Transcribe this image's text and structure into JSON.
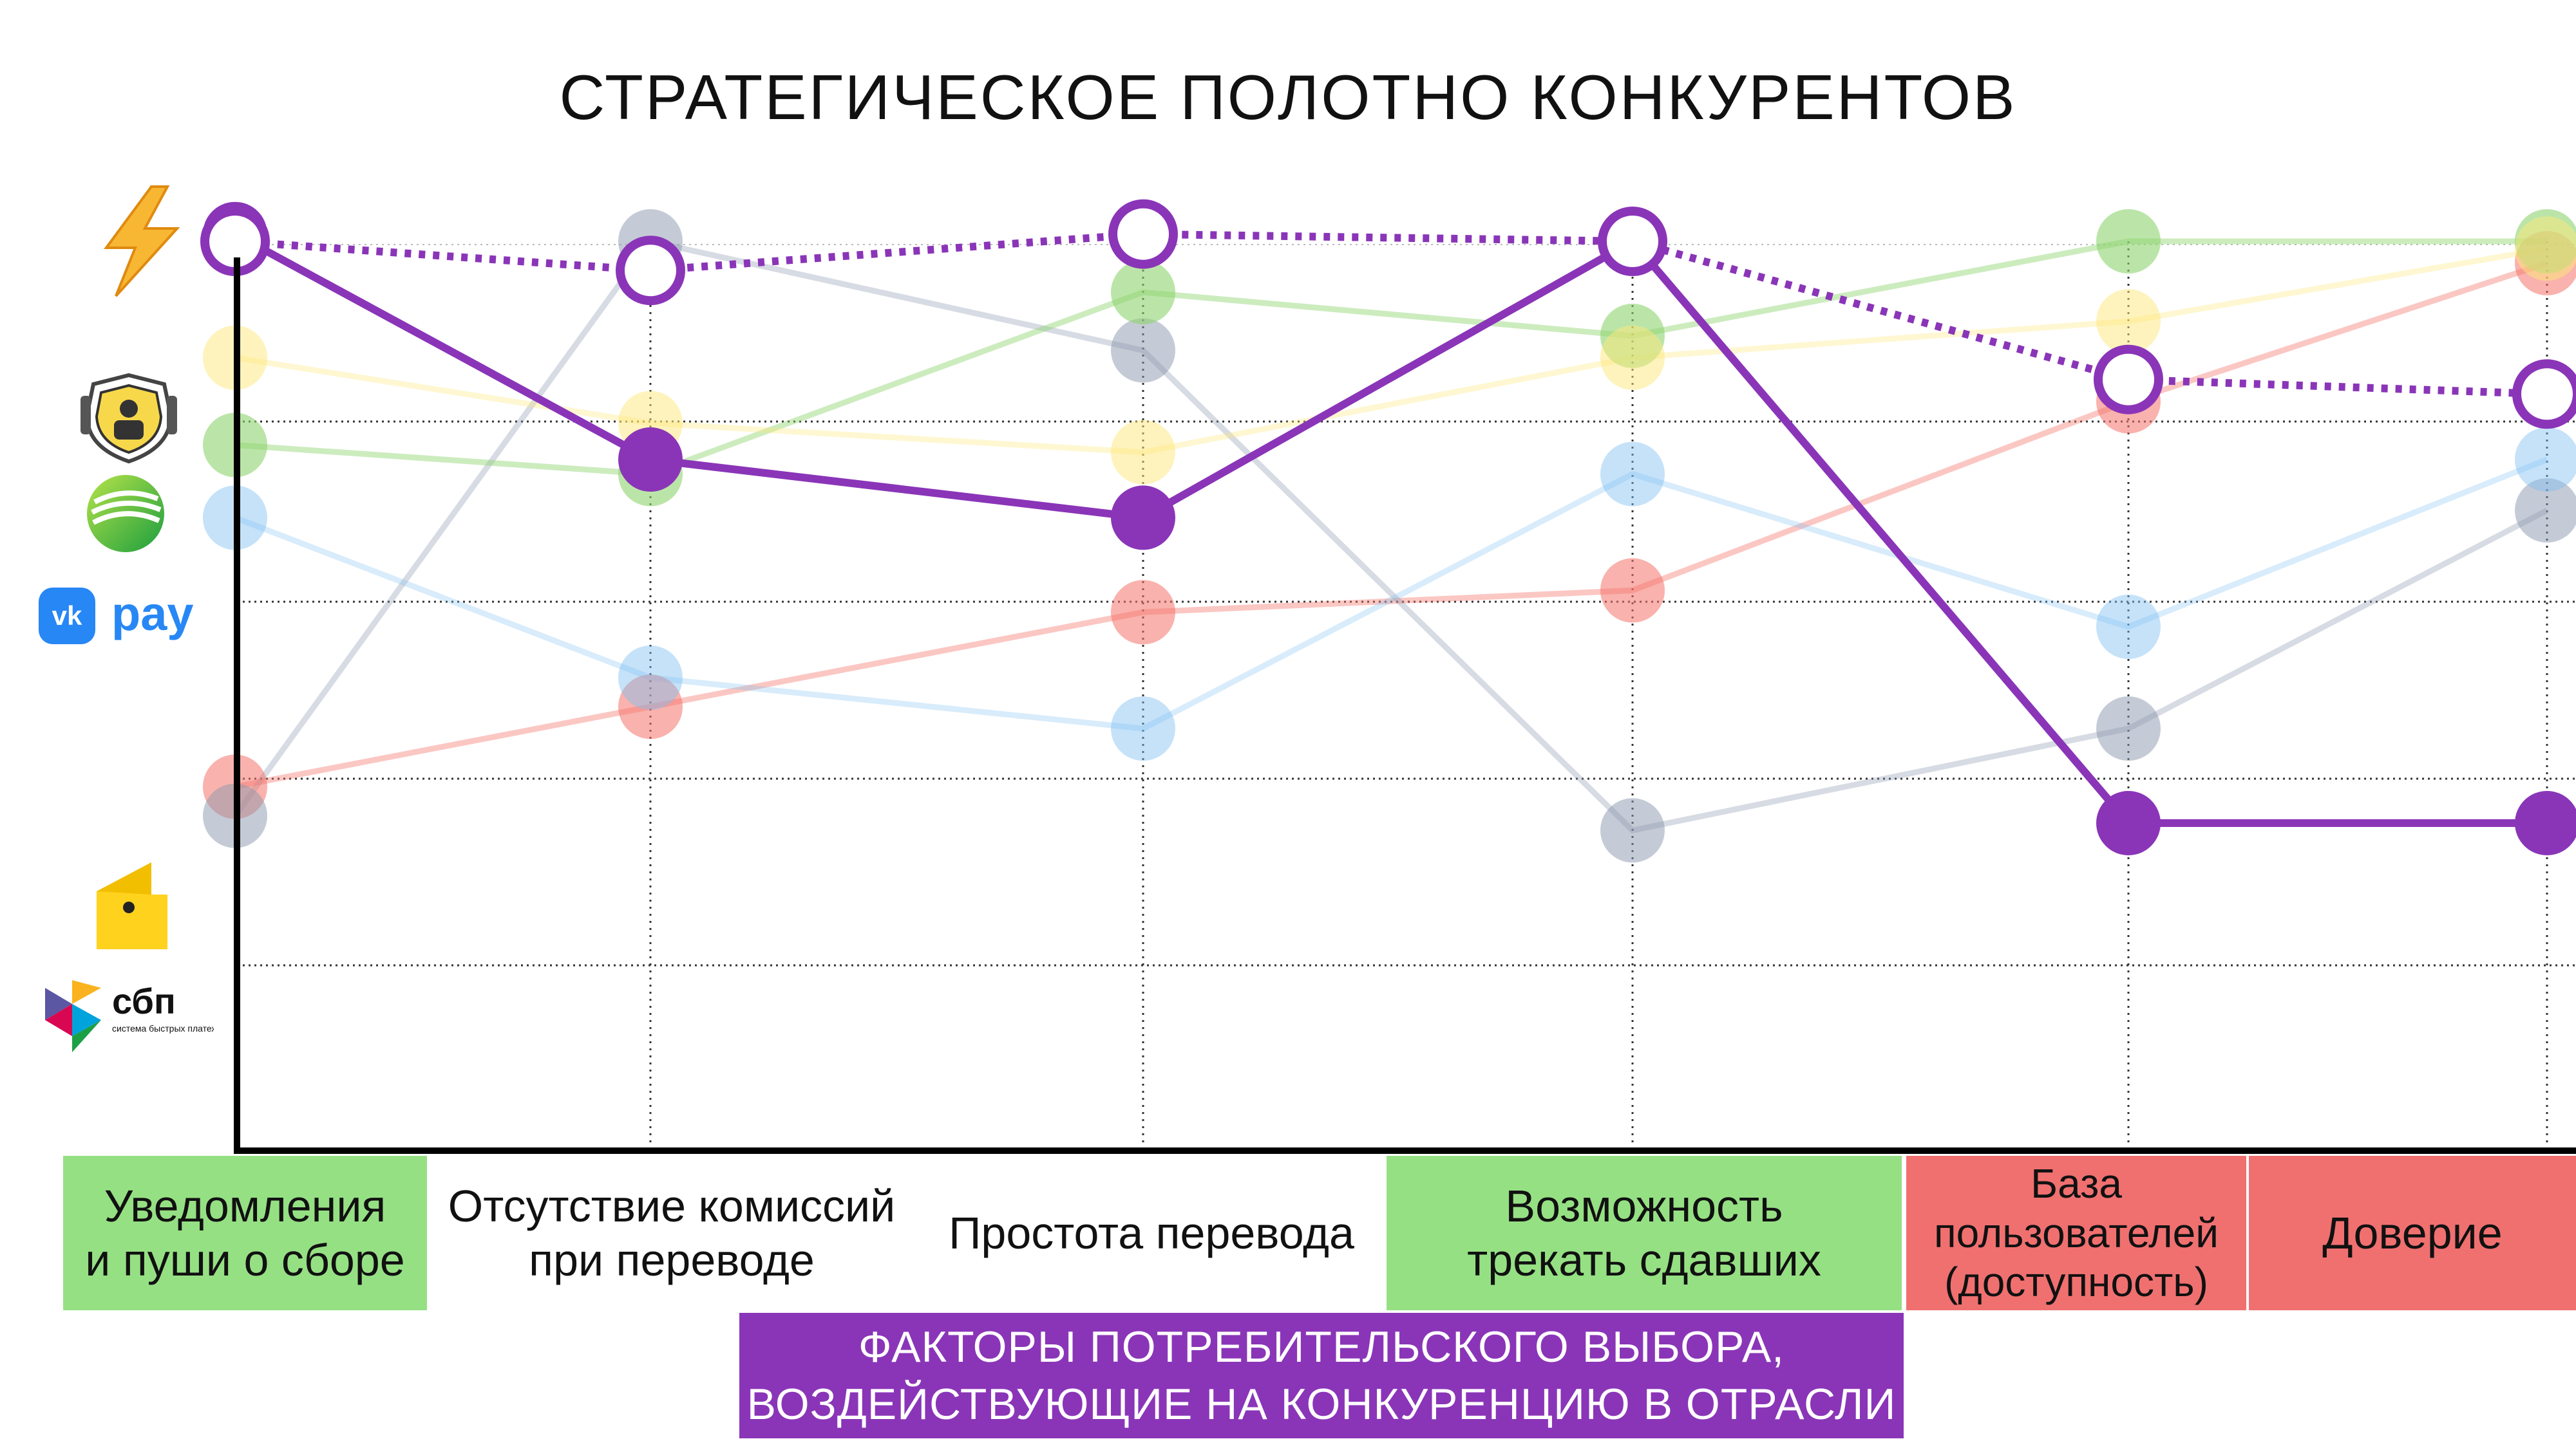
{
  "title": "СТРАТЕГИЧЕСКОЕ ПОЛОТНО КОНКУРЕНТОВ",
  "footer": {
    "line1": "ФАКТОРЫ ПОТРЕБИТЕЛЬСКОГО ВЫБОРА,",
    "line2": "ВОЗДЕЙСТВУЮЩИЕ НА КОНКУРЕНЦИЮ В ОТРАСЛИ"
  },
  "logos": {
    "lightning": "lightning-icon",
    "tinkoff": "tinkoff-logo",
    "sber": "sber-logo",
    "vkpay": "vk pay",
    "vkpay_badge": "vk",
    "yoomoney": "yoomoney-logo",
    "sbp": "сбп",
    "sbp_sub": "система быстрых платежей"
  },
  "categories": [
    {
      "label": "Уведомления\nи пуши о сборе",
      "bg": "#96e084"
    },
    {
      "label": "Отсутствие комиссий\nпри переводе",
      "bg": "#ffffff"
    },
    {
      "label": "Простота перевода",
      "bg": "#ffffff"
    },
    {
      "label": "Возможность\nтрекать сдавших",
      "bg": "#96e084"
    },
    {
      "label": "База\nпользователей\n(доступность)",
      "bg": "#f07070"
    },
    {
      "label": "Доверие",
      "bg": "#f07070"
    }
  ],
  "chart_data": {
    "type": "line",
    "categories": [
      "Уведомления и пуши о сборе",
      "Отсутствие комиссий при переводе",
      "Простота перевода",
      "Возможность трекать сдавших",
      "База пользователей (доступность)",
      "Доверие"
    ],
    "ylim": [
      0,
      10
    ],
    "grid": true,
    "series": [
      {
        "logo": "yoomoney",
        "color": "#f4736a",
        "opacity": 0.4,
        "style": "solid",
        "marker": "filled",
        "values": [
          2.5,
          3.6,
          4.9,
          5.2,
          7.8,
          9.7
        ]
      },
      {
        "logo": "sbp",
        "color": "#8b97ae",
        "opacity": 0.35,
        "style": "solid",
        "marker": "filled",
        "values": [
          2.1,
          10.0,
          8.5,
          1.9,
          3.3,
          6.3
        ]
      },
      {
        "logo": "vkpay",
        "color": "#7fbff2",
        "opacity": 0.3,
        "style": "solid",
        "marker": "filled",
        "values": [
          6.2,
          4.0,
          3.3,
          6.8,
          4.7,
          7.0
        ]
      },
      {
        "logo": "sber",
        "color": "#8ed46e",
        "opacity": 0.45,
        "style": "solid",
        "marker": "filled",
        "values": [
          7.2,
          6.8,
          9.3,
          8.7,
          10.0,
          10.0
        ]
      },
      {
        "logo": "tinkoff",
        "color": "#fde77a",
        "opacity": 0.35,
        "style": "solid",
        "marker": "filled",
        "values": [
          8.4,
          7.5,
          7.1,
          8.4,
          8.9,
          9.9
        ]
      },
      {
        "logo": "lightning",
        "color": "#8a35b8",
        "opacity": 1,
        "style": "solid",
        "marker": "filled",
        "values": [
          10.1,
          7.0,
          6.2,
          10.0,
          2.0,
          2.0
        ]
      },
      {
        "logo": "lightning",
        "color": "#8a35b8",
        "opacity": 1,
        "style": "dotted",
        "marker": "hollow",
        "values": [
          10.0,
          9.6,
          10.1,
          10.0,
          8.1,
          7.9
        ]
      }
    ]
  }
}
